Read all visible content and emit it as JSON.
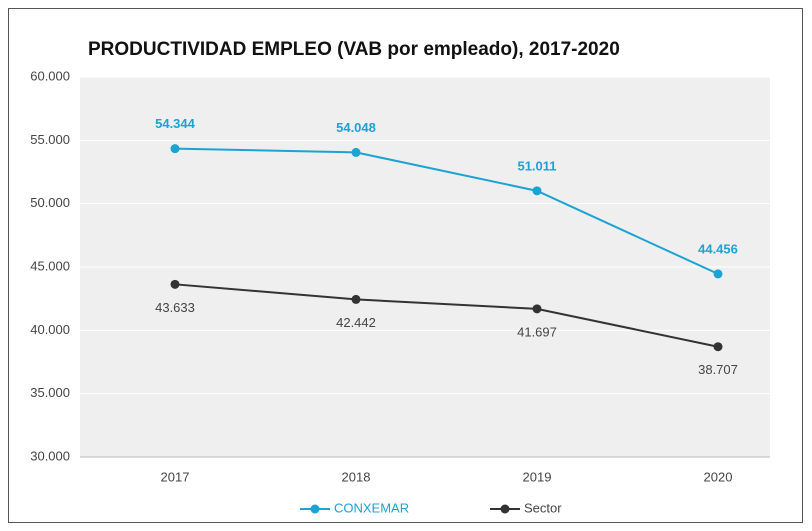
{
  "chart_data": {
    "type": "line",
    "title": "PRODUCTIVIDAD EMPLEO (VAB por empleado), 2017-2020",
    "categories": [
      "2017",
      "2018",
      "2019",
      "2020"
    ],
    "series": [
      {
        "name": "CONXEMAR",
        "color": "#1ba3d4",
        "values": [
          54344,
          54048,
          51011,
          44456
        ],
        "value_labels": [
          "54.344",
          "54.048",
          "51.011",
          "44.456"
        ]
      },
      {
        "name": "Sector",
        "color": "#333333",
        "values": [
          43633,
          42442,
          41697,
          38707
        ],
        "value_labels": [
          "43.633",
          "42.442",
          "41.697",
          "38.707"
        ]
      }
    ],
    "ylim": [
      30000,
      60000
    ],
    "yticks": [
      {
        "value": 30000,
        "label": "30.000"
      },
      {
        "value": 35000,
        "label": "35.000"
      },
      {
        "value": 40000,
        "label": "40.000"
      },
      {
        "value": 45000,
        "label": "45.000"
      },
      {
        "value": 50000,
        "label": "50.000"
      },
      {
        "value": 55000,
        "label": "55.000"
      },
      {
        "value": 60000,
        "label": "60.000"
      }
    ],
    "grid": true,
    "legend": "bottom"
  }
}
